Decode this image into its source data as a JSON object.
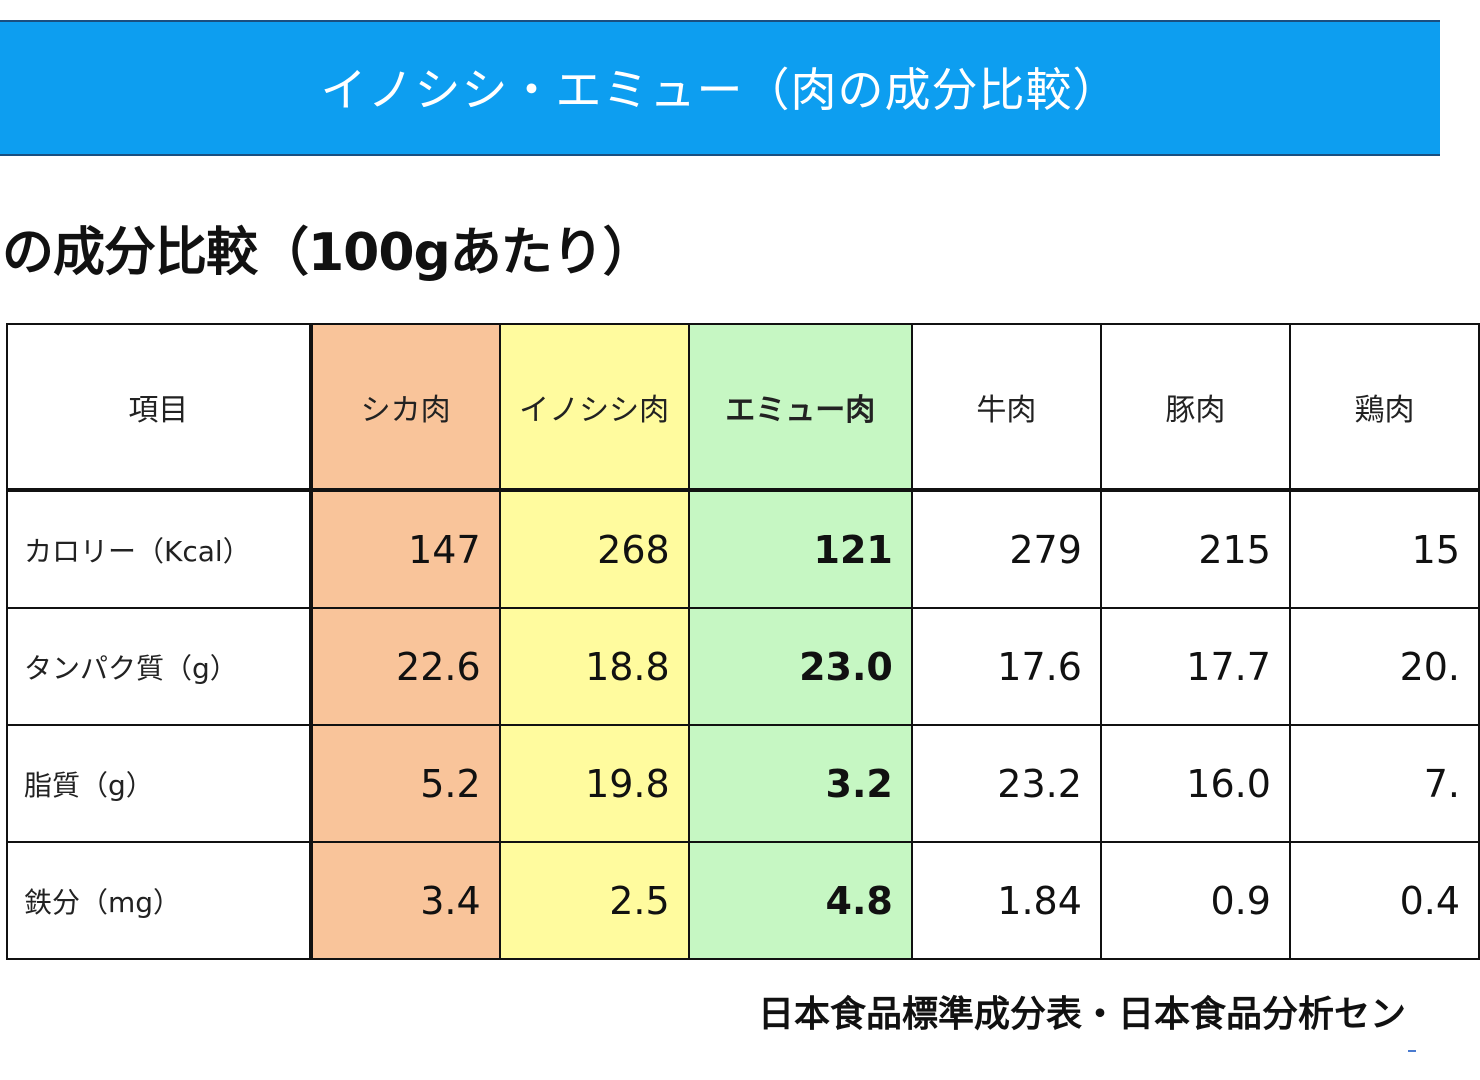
{
  "banner": {
    "title": "イノシシ・エミュー（肉の成分比較）",
    "color": "#0d9ef0"
  },
  "subtitle": "の成分比較（100gあたり）",
  "table": {
    "headers": [
      "項目",
      "シカ肉",
      "イノシシ肉",
      "エミュー肉",
      "牛肉",
      "豚肉",
      "鶏肉"
    ],
    "rows": [
      {
        "label": "カロリー（Kcal）",
        "values": [
          "147",
          "268",
          "121",
          "279",
          "215",
          "15"
        ]
      },
      {
        "label": "タンパク質（g）",
        "values": [
          "22.6",
          "18.8",
          "23.0",
          "17.6",
          "17.7",
          "20."
        ]
      },
      {
        "label": "脂質（g）",
        "values": [
          "5.2",
          "19.8",
          "3.2",
          "23.2",
          "16.0",
          "7."
        ]
      },
      {
        "label": "鉄分（mg）",
        "values": [
          "3.4",
          "2.5",
          "4.8",
          "1.84",
          "0.9",
          "0.4"
        ]
      }
    ],
    "column_colors": {
      "シカ肉": "#f9c49a",
      "イノシシ肉": "#fffb9e",
      "エミュー肉": "#c6f7c3"
    }
  },
  "footer": {
    "source": "日本食品標準成分表・日本食品分析セン"
  }
}
